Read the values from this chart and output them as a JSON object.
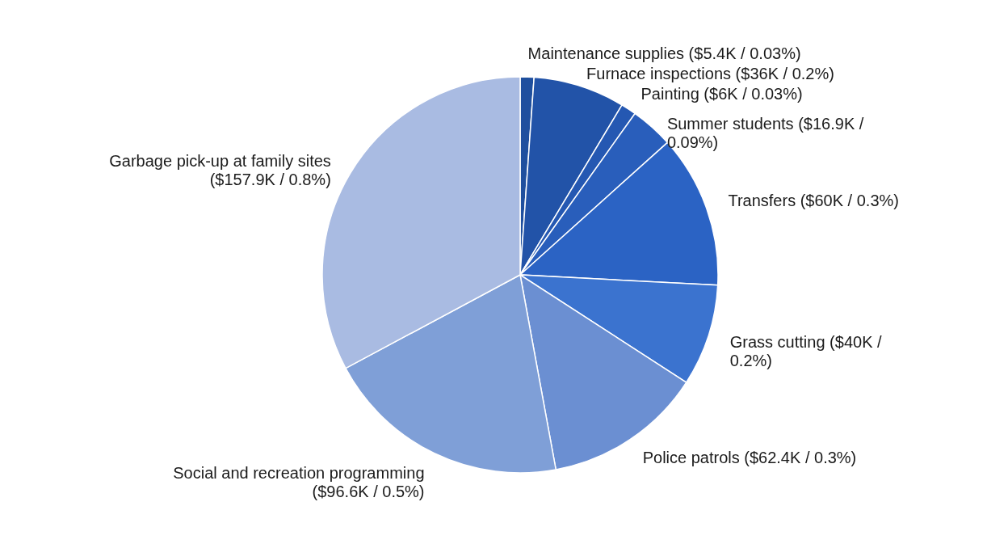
{
  "chart_data": {
    "type": "pie",
    "categories": [
      "Maintenance supplies ($5.4K / 0.03%)",
      "Furnace inspections ($36K / 0.2%)",
      "Painting ($6K / 0.03%)",
      "Summer students ($16.9K /\n0.09%)",
      "Transfers ($60K / 0.3%)",
      "Grass cutting ($40K /\n0.2%)",
      "Police patrols ($62.4K / 0.3%)",
      "Social and recreation programming\n($96.6K / 0.5%)",
      "Garbage pick-up at family sites\n($157.9K / 0.8%)"
    ],
    "values": [
      1.12,
      7.48,
      1.25,
      3.51,
      12.47,
      8.31,
      12.97,
      20.07,
      32.82
    ],
    "colors": [
      "#1f4f9e",
      "#2253a8",
      "#2558b2",
      "#295ebb",
      "#2b63c4",
      "#3b73cf",
      "#6b8fd2",
      "#7f9fd7",
      "#a9bbe2"
    ]
  }
}
